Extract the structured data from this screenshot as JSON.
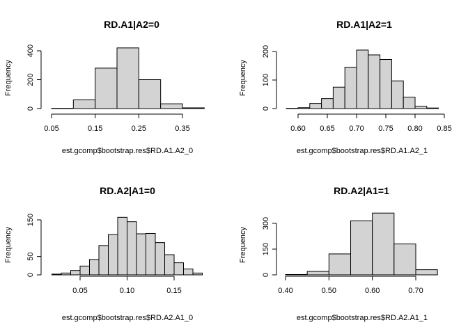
{
  "chart_data": [
    {
      "type": "bar",
      "title": "RD.A1|A2=0",
      "xlabel": "est.gcomp$bootstrap.res$RD.A1.A2_0",
      "ylabel": "Frequency",
      "xlim": [
        0.05,
        0.4
      ],
      "ylim": [
        0,
        430
      ],
      "xticks": [
        0.05,
        0.15,
        0.25,
        0.35
      ],
      "xtick_labels": [
        "0.05",
        "0.15",
        "0.25",
        "0.35"
      ],
      "yticks": [
        0,
        200,
        400
      ],
      "ytick_labels": [
        "0",
        "200",
        "400"
      ],
      "bins": [
        {
          "start": 0.05,
          "end": 0.1,
          "count": 2
        },
        {
          "start": 0.1,
          "end": 0.15,
          "count": 60
        },
        {
          "start": 0.15,
          "end": 0.2,
          "count": 280
        },
        {
          "start": 0.2,
          "end": 0.25,
          "count": 420
        },
        {
          "start": 0.25,
          "end": 0.3,
          "count": 200
        },
        {
          "start": 0.3,
          "end": 0.35,
          "count": 33
        },
        {
          "start": 0.35,
          "end": 0.4,
          "count": 5
        }
      ]
    },
    {
      "type": "bar",
      "title": "RD.A1|A2=1",
      "xlabel": "est.gcomp$bootstrap.res$RD.A1.A2_1",
      "ylabel": "Frequency",
      "xlim": [
        0.58,
        0.84
      ],
      "ylim": [
        0,
        215
      ],
      "xticks": [
        0.6,
        0.65,
        0.7,
        0.75,
        0.8,
        0.85
      ],
      "xtick_labels": [
        "0.60",
        "0.65",
        "0.70",
        "0.75",
        "0.80",
        "0.85"
      ],
      "yticks": [
        0,
        100,
        200
      ],
      "ytick_labels": [
        "0",
        "100",
        "200"
      ],
      "bins": [
        {
          "start": 0.58,
          "end": 0.6,
          "count": 1
        },
        {
          "start": 0.6,
          "end": 0.62,
          "count": 3
        },
        {
          "start": 0.62,
          "end": 0.64,
          "count": 18
        },
        {
          "start": 0.64,
          "end": 0.66,
          "count": 35
        },
        {
          "start": 0.66,
          "end": 0.68,
          "count": 75
        },
        {
          "start": 0.68,
          "end": 0.7,
          "count": 145
        },
        {
          "start": 0.7,
          "end": 0.72,
          "count": 205
        },
        {
          "start": 0.72,
          "end": 0.74,
          "count": 188
        },
        {
          "start": 0.74,
          "end": 0.76,
          "count": 172
        },
        {
          "start": 0.76,
          "end": 0.78,
          "count": 97
        },
        {
          "start": 0.78,
          "end": 0.8,
          "count": 40
        },
        {
          "start": 0.8,
          "end": 0.82,
          "count": 8
        },
        {
          "start": 0.82,
          "end": 0.84,
          "count": 2
        }
      ]
    },
    {
      "type": "bar",
      "title": "RD.A2|A1=0",
      "xlabel": "est.gcomp$bootstrap.res$RD.A2.A1_0",
      "ylabel": "Frequency",
      "xlim": [
        0.02,
        0.18
      ],
      "ylim": [
        0,
        160
      ],
      "xticks": [
        0.05,
        0.1,
        0.15
      ],
      "xtick_labels": [
        "0.05",
        "0.10",
        "0.15"
      ],
      "yticks": [
        0,
        50,
        150
      ],
      "ytick_labels": [
        "0",
        "50",
        "150"
      ],
      "bins": [
        {
          "start": 0.02,
          "end": 0.03,
          "count": 2
        },
        {
          "start": 0.03,
          "end": 0.04,
          "count": 5
        },
        {
          "start": 0.04,
          "end": 0.05,
          "count": 12
        },
        {
          "start": 0.05,
          "end": 0.06,
          "count": 24
        },
        {
          "start": 0.06,
          "end": 0.07,
          "count": 42
        },
        {
          "start": 0.07,
          "end": 0.08,
          "count": 80
        },
        {
          "start": 0.08,
          "end": 0.09,
          "count": 110
        },
        {
          "start": 0.09,
          "end": 0.1,
          "count": 157
        },
        {
          "start": 0.1,
          "end": 0.11,
          "count": 145
        },
        {
          "start": 0.11,
          "end": 0.12,
          "count": 112
        },
        {
          "start": 0.12,
          "end": 0.13,
          "count": 113
        },
        {
          "start": 0.13,
          "end": 0.14,
          "count": 88
        },
        {
          "start": 0.14,
          "end": 0.15,
          "count": 55
        },
        {
          "start": 0.15,
          "end": 0.16,
          "count": 33
        },
        {
          "start": 0.16,
          "end": 0.17,
          "count": 16
        },
        {
          "start": 0.17,
          "end": 0.18,
          "count": 5
        }
      ]
    },
    {
      "type": "bar",
      "title": "RD.A2|A1=1",
      "xlabel": "est.gcomp$bootstrap.res$RD.A2.A1_1",
      "ylabel": "Frequency",
      "xlim": [
        0.4,
        0.75
      ],
      "ylim": [
        0,
        365
      ],
      "xticks": [
        0.4,
        0.5,
        0.6,
        0.7
      ],
      "xtick_labels": [
        "0.40",
        "0.50",
        "0.60",
        "0.70"
      ],
      "yticks": [
        0,
        150,
        300
      ],
      "ytick_labels": [
        "0",
        "150",
        "300"
      ],
      "bins": [
        {
          "start": 0.4,
          "end": 0.45,
          "count": 2
        },
        {
          "start": 0.45,
          "end": 0.5,
          "count": 20
        },
        {
          "start": 0.5,
          "end": 0.55,
          "count": 122
        },
        {
          "start": 0.55,
          "end": 0.6,
          "count": 315
        },
        {
          "start": 0.6,
          "end": 0.65,
          "count": 360
        },
        {
          "start": 0.65,
          "end": 0.7,
          "count": 180
        },
        {
          "start": 0.7,
          "end": 0.75,
          "count": 30
        }
      ]
    }
  ]
}
